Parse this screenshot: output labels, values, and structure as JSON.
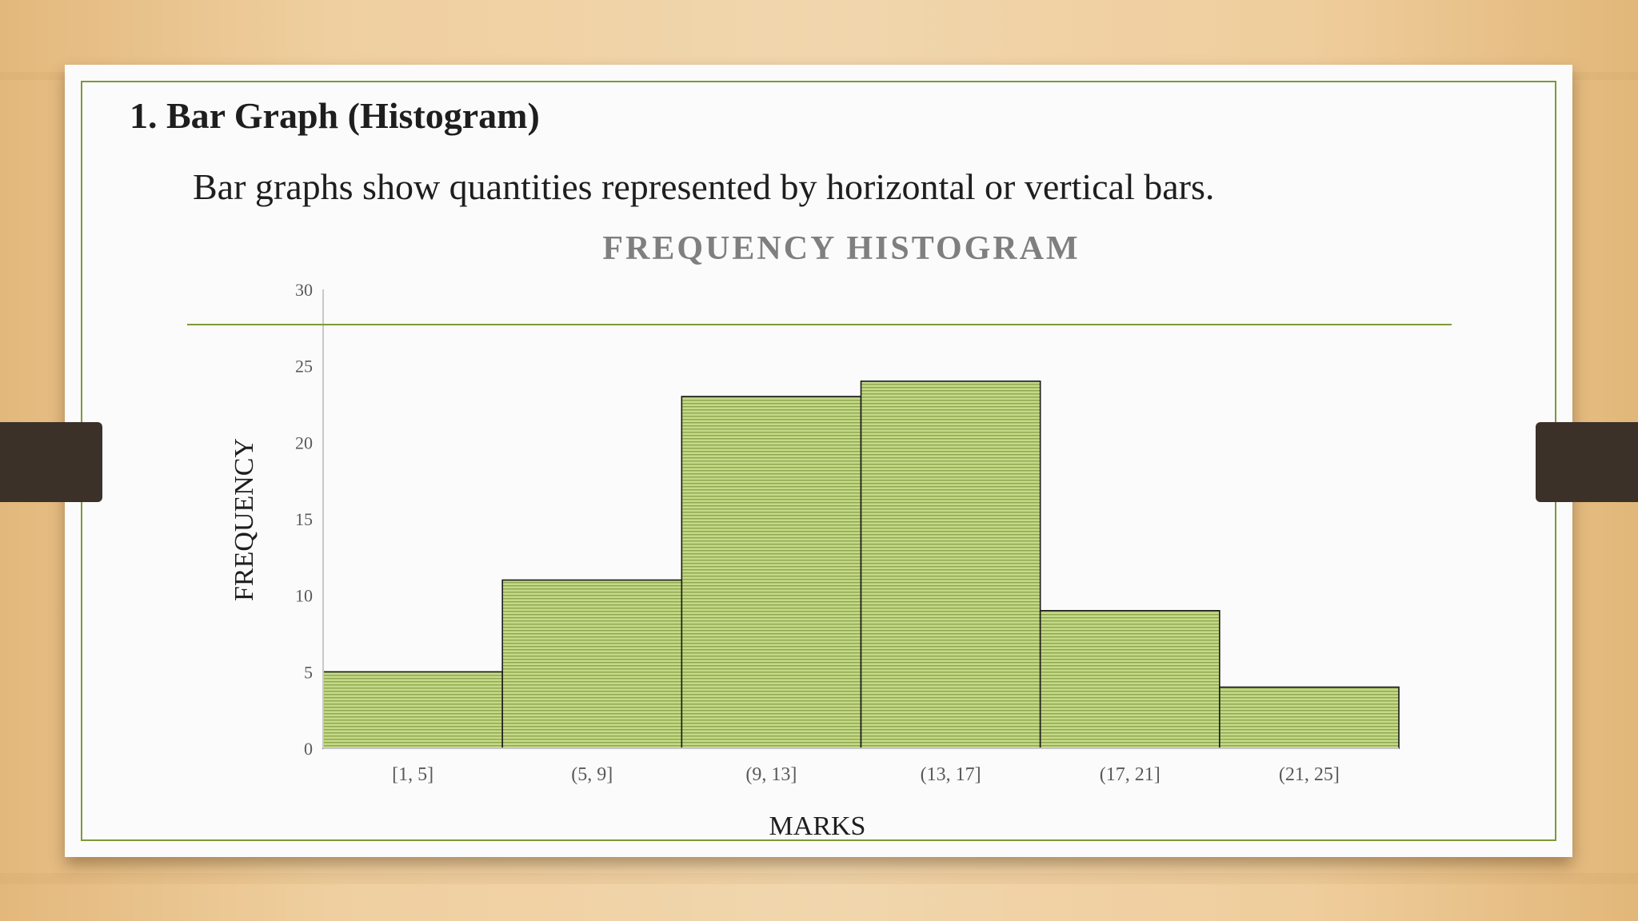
{
  "slide": {
    "title": "1. Bar Graph (Histogram)",
    "subtitle": "Bar graphs show quantities represented by horizontal or vertical bars."
  },
  "colors": {
    "bar_fill": "#c5d98a",
    "bar_stripe": "#8ea64a",
    "bar_edge": "#1a1a1a",
    "accent": "#7d9a35",
    "chart_title": "#7f7f7f",
    "tick_text": "#595959",
    "axis_line": "#c8c8c8"
  },
  "chart_data": {
    "type": "bar",
    "title": "FREQUENCY HISTOGRAM",
    "xlabel": "MARKS",
    "ylabel": "FREQUENCY",
    "categories": [
      "[1, 5]",
      "(5, 9]",
      "(9, 13]",
      "(13, 17]",
      "(17, 21]",
      "(21, 25]"
    ],
    "values": [
      5,
      11,
      23,
      24,
      9,
      4
    ],
    "ylim": [
      0,
      30
    ],
    "yticks": [
      0,
      5,
      10,
      15,
      20,
      25,
      30
    ],
    "grid": false,
    "legend": "none"
  }
}
